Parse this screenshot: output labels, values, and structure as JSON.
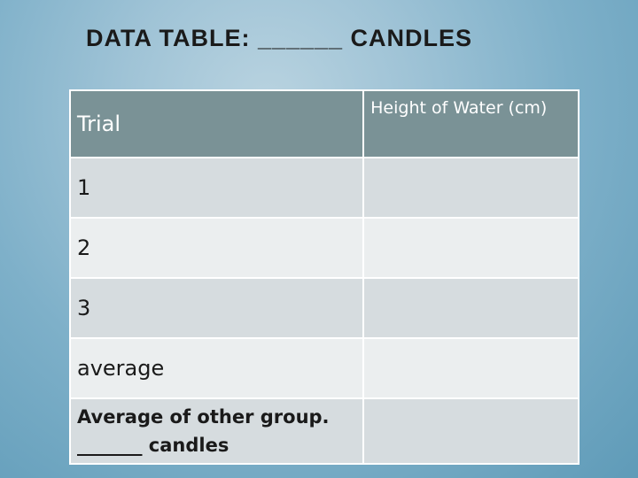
{
  "slide": {
    "title": "DATA TABLE: ______ CANDLES"
  },
  "table": {
    "headers": {
      "trial": "Trial",
      "height": "Height of Water (cm)"
    },
    "rows": [
      {
        "trial": "1",
        "height": ""
      },
      {
        "trial": "2",
        "height": ""
      },
      {
        "trial": "3",
        "height": ""
      },
      {
        "trial": "average",
        "height": ""
      },
      {
        "trial_line1": "Average of other group.",
        "trial_line2": "_______ candles",
        "height": ""
      }
    ]
  }
}
